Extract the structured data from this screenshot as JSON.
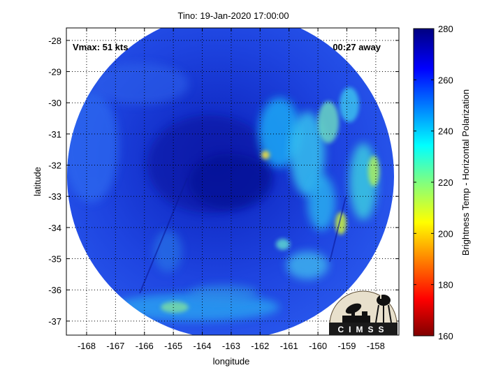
{
  "title": "Tino: 19-Jan-2020 17:00:00",
  "vmax_label": "Vmax: 51 kts",
  "away_label": "00:27 away",
  "xlabel": "longitude",
  "ylabel": "latitude",
  "x_ticks": [
    "-168",
    "-167",
    "-166",
    "-165",
    "-164",
    "-163",
    "-162",
    "-161",
    "-160",
    "-159",
    "-158"
  ],
  "y_ticks": [
    "-28",
    "-29",
    "-30",
    "-31",
    "-32",
    "-33",
    "-34",
    "-35",
    "-36",
    "-37"
  ],
  "colorbar": {
    "label": "Brightness Temp - Horizontal Polarization",
    "ticks": [
      "280",
      "260",
      "240",
      "220",
      "200",
      "180",
      "160"
    ],
    "min": 160,
    "max": 280
  },
  "logo": {
    "text": "CIMSS"
  },
  "chart_data": {
    "type": "heatmap",
    "title": "Tino: 19-Jan-2020 17:00:00",
    "xlabel": "longitude",
    "ylabel": "latitude",
    "xlim": [
      -168.7,
      -157.2
    ],
    "ylim": [
      -37.45,
      -27.6
    ],
    "grid": true,
    "colorbar_range": [
      160,
      280
    ],
    "colormap": "jet",
    "field": "brightness temperature (K), horizontal polarization",
    "swath": {
      "shape": "circle",
      "center_lon": -162.9,
      "center_lat": -32.5,
      "edge_lon": [
        -168.5,
        -157.3
      ],
      "edge_lat": [
        -37.1,
        -27.7
      ]
    },
    "background_value": 265,
    "features": [
      {
        "name": "eye / cold core",
        "lon": -163.2,
        "lat": -31.8,
        "value": 275
      },
      {
        "name": "rainband",
        "lon": -161.0,
        "lat": -30.5,
        "value": 235
      },
      {
        "name": "warm spot",
        "lon": -161.8,
        "lat": -31.6,
        "value": 205
      },
      {
        "name": "eastern band",
        "lon": -157.8,
        "lat": -32.3,
        "value": 215
      },
      {
        "name": "south band",
        "lon": -164.5,
        "lat": -36.5,
        "value": 235
      }
    ]
  }
}
